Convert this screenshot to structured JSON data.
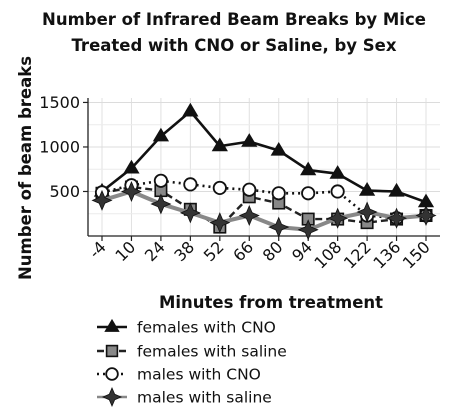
{
  "chart_data": {
    "type": "line",
    "title": [
      "Number of Infrared Beam Breaks by Mice",
      "Treated with CNO or Saline, by Sex"
    ],
    "xlabel": "Minutes from treatment",
    "ylabel": "Number of beam breaks",
    "x": [
      -4,
      10,
      24,
      38,
      52,
      66,
      80,
      94,
      108,
      122,
      136,
      150
    ],
    "x_tick_labels": [
      "-4",
      "10",
      "24",
      "38",
      "52",
      "66",
      "80",
      "94",
      "108",
      "122",
      "136",
      "150"
    ],
    "y_ticks": [
      500,
      1000,
      1500
    ],
    "y_tick_labels": [
      "500",
      "1000",
      "1500"
    ],
    "xlim": [
      -4,
      150
    ],
    "ylim": [
      0,
      1550
    ],
    "grid": true,
    "legend_position": "bottom",
    "series": [
      {
        "name": "females with CNO",
        "style": "solid",
        "marker": "triangle",
        "values": [
          500,
          760,
          1120,
          1400,
          1010,
          1060,
          960,
          740,
          700,
          510,
          500,
          380
        ]
      },
      {
        "name": "females with saline",
        "style": "dashed",
        "marker": "square",
        "values": [
          480,
          550,
          510,
          300,
          100,
          440,
          370,
          190,
          190,
          150,
          190,
          230
        ]
      },
      {
        "name": "males with CNO",
        "style": "dotted",
        "marker": "circle",
        "values": [
          490,
          570,
          620,
          580,
          540,
          520,
          480,
          480,
          500,
          230,
          200,
          230
        ]
      },
      {
        "name": "males with saline",
        "style": "solid",
        "marker": "star",
        "values": [
          400,
          500,
          360,
          260,
          150,
          230,
          100,
          70,
          200,
          270,
          200,
          230
        ]
      }
    ]
  }
}
